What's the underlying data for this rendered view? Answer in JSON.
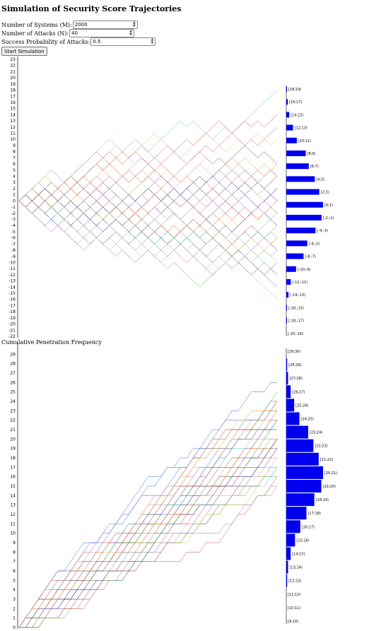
{
  "title": "Simulation of Security Score Trajectories",
  "controls": {
    "systems_label": "Number of Systems (M):",
    "systems_value": "2000",
    "attacks_label": "Number of Attacks (N):",
    "attacks_value": "40",
    "prob_label": "Success Probability of Attacks:",
    "prob_value": "0.5",
    "start_label": "Start Simulation"
  },
  "section2_title": "Cumulative Penetration Frequency",
  "chart_data": [
    {
      "type": "line",
      "title": "",
      "ylim": [
        -22,
        23
      ],
      "y_ticks": [
        23,
        22,
        21,
        20,
        19,
        18,
        17,
        16,
        15,
        14,
        13,
        12,
        11,
        10,
        9,
        8,
        7,
        6,
        5,
        4,
        3,
        2,
        1,
        0,
        -1,
        -2,
        -3,
        -4,
        -5,
        -6,
        -7,
        -8,
        -9,
        -10,
        -11,
        -12,
        -13,
        -14,
        -15,
        -16,
        -17,
        -18,
        -19,
        -20,
        -21,
        -22
      ],
      "steps": 40,
      "histogram": {
        "bins": [
          "[18;19)",
          "[16;17)",
          "[14;15)",
          "[12;13)",
          "[10;11)",
          "[8;9)",
          "[6;7)",
          "[4;5)",
          "[2;3)",
          "[0;1)",
          "[-2;-1)",
          "[-4;-3)",
          "[-6;-5)",
          "[-8;-7)",
          "[-10;-9)",
          "[-12;-11)",
          "[-14;-13)",
          "[-16;-15)",
          "[-18;-17)",
          "[-20;-19)"
        ],
        "values": [
          1,
          2,
          4,
          9,
          14,
          26,
          30,
          38,
          44,
          49,
          47,
          39,
          28,
          23,
          13,
          6,
          3,
          1,
          1,
          0
        ]
      }
    },
    {
      "type": "line",
      "title": "Cumulative Penetration Frequency",
      "ylim": [
        0,
        30
      ],
      "y_ticks": [
        29,
        28,
        27,
        26,
        25,
        24,
        23,
        22,
        21,
        20,
        19,
        18,
        17,
        16,
        15,
        14,
        13,
        12,
        11,
        10,
        9,
        8,
        7,
        6,
        5,
        4,
        3,
        2,
        1,
        0
      ],
      "steps": 40,
      "histogram": {
        "bins": [
          "[29;30)",
          "[28;29)",
          "[27;28)",
          "[26;27)",
          "[25;26)",
          "[24;25)",
          "[23;24)",
          "[22;23)",
          "[21;22)",
          "[20;21)",
          "[19;20)",
          "[18;19)",
          "[17;18)",
          "[16;17)",
          "[15;16)",
          "[14;15)",
          "[13;14)",
          "[12;13)",
          "[11;12)",
          "[10;11)",
          "[9;10)"
        ],
        "values": [
          0,
          1,
          2,
          5,
          9,
          15,
          25,
          31,
          37,
          42,
          40,
          32,
          23,
          16,
          10,
          5,
          2,
          1,
          0,
          0,
          0
        ]
      }
    }
  ],
  "colors": {
    "bar": "#0000ee",
    "axis": "#000000",
    "paths": [
      "#1f4fd6",
      "#d62728",
      "#2ca02c",
      "#9467bd",
      "#ff7f0e",
      "#8c564b",
      "#e377c2",
      "#17becf",
      "#bcbd22",
      "#1a1a6e",
      "#7f7f7f",
      "#b03060"
    ]
  }
}
